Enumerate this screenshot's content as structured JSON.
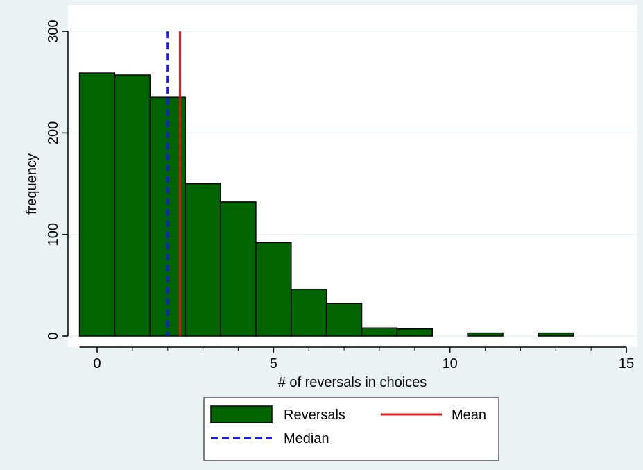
{
  "chart_data": {
    "type": "bar",
    "xlabel": "# of reversals in choices",
    "ylabel": "frequency",
    "xlim": [
      -0.5,
      15
    ],
    "ylim": [
      0,
      300
    ],
    "x_ticks": [
      "0",
      "5",
      "10",
      "15"
    ],
    "y_ticks": [
      "0",
      "100",
      "200",
      "300"
    ],
    "grid": true,
    "bins": [
      0,
      1,
      2,
      3,
      4,
      5,
      6,
      7,
      8,
      9,
      10,
      11,
      12,
      13
    ],
    "series": [
      {
        "name": "Reversals",
        "color": "#006400",
        "values": [
          259,
          257,
          235,
          150,
          132,
          92,
          46,
          32,
          8,
          7,
          0,
          3,
          0,
          3
        ]
      }
    ],
    "reference_lines": [
      {
        "name": "Mean",
        "x": 2.35,
        "color": "#e31a1c",
        "style": "solid"
      },
      {
        "name": "Median",
        "x": 2,
        "color": "#1a1ae0",
        "style": "dashed"
      }
    ],
    "legend": {
      "placement": "bottom",
      "items": [
        {
          "label": "Reversals",
          "kind": "box",
          "color": "#006400"
        },
        {
          "label": "Mean",
          "kind": "line",
          "color": "#e31a1c"
        },
        {
          "label": "Median",
          "kind": "dashed-line",
          "color": "#1a1ae0"
        }
      ]
    }
  }
}
